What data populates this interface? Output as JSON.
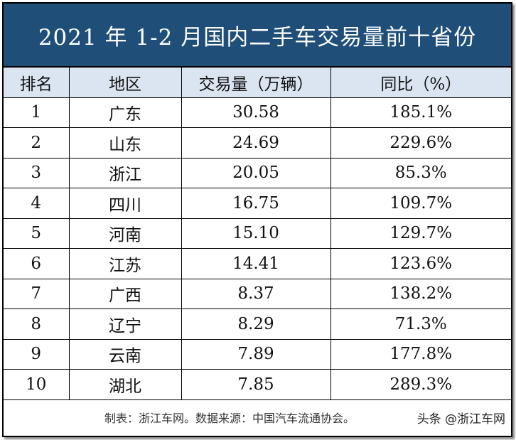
{
  "header": {
    "title": "2021 年 1-2 月国内二手车交易量前十省份"
  },
  "table": {
    "columns": [
      "排名",
      "地区",
      "交易量（万辆）",
      "同比（%）"
    ],
    "rows": [
      [
        "1",
        "广东",
        "30.58",
        "185.1%"
      ],
      [
        "2",
        "山东",
        "24.69",
        "229.6%"
      ],
      [
        "3",
        "浙江",
        "20.05",
        "85.3%"
      ],
      [
        "4",
        "四川",
        "16.75",
        "109.7%"
      ],
      [
        "5",
        "河南",
        "15.10",
        "129.7%"
      ],
      [
        "6",
        "江苏",
        "14.41",
        "123.6%"
      ],
      [
        "7",
        "广西",
        "8.37",
        "138.2%"
      ],
      [
        "8",
        "辽宁",
        "8.29",
        "71.3%"
      ],
      [
        "9",
        "云南",
        "7.89",
        "177.8%"
      ],
      [
        "10",
        "湖北",
        "7.85",
        "289.3%"
      ]
    ]
  },
  "footer": {
    "note": "制表：浙江车网。数据来源：中国汽车流通协会。",
    "watermark": "头条 @浙江车网"
  }
}
